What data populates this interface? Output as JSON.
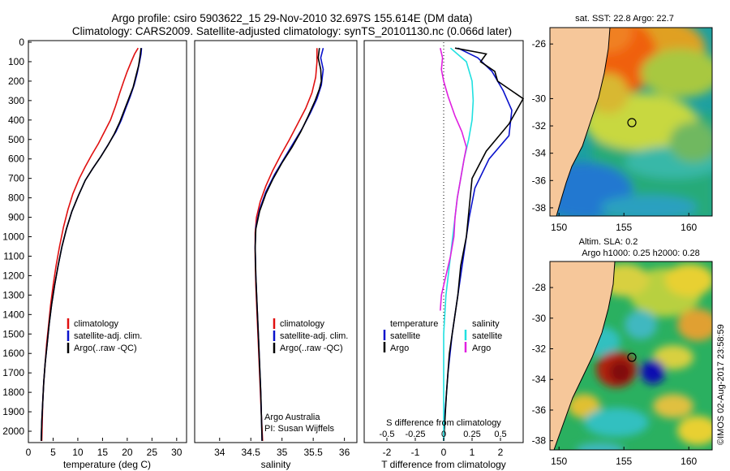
{
  "header": {
    "line1": "Argo profile: csiro 5903622_15 29-Nov-2010 32.697S 155.614E (DM data)",
    "line2": "Climatology: CARS2009. Satellite-adjusted climatology: synTS_20101130.nc (0.066d later)"
  },
  "colors": {
    "climatology": "#e01010",
    "satellite": "#0a12cc",
    "argo": "#000000",
    "s_satellite": "#20e0e0",
    "s_argo": "#e020e0",
    "land": "#f6c79a"
  },
  "depth_axis": {
    "ticks": [
      "0",
      "100",
      "200",
      "300",
      "400",
      "500",
      "600",
      "700",
      "800",
      "900",
      "1000",
      "1100",
      "1200",
      "1300",
      "1400",
      "1500",
      "1600",
      "1700",
      "1800",
      "1900",
      "2000"
    ]
  },
  "chart_data": [
    {
      "type": "line",
      "name": "temperature",
      "xlabel": "temperature (deg C)",
      "ylabel": "depth",
      "xlim": [
        0,
        32
      ],
      "ylim": [
        2050,
        0
      ],
      "xticks": [
        "0",
        "5",
        "10",
        "15",
        "20",
        "25",
        "30"
      ],
      "legend": [
        "climatology",
        "satellite-adj. clim.",
        "Argo(..raw -QC)"
      ],
      "series": [
        {
          "name": "climatology",
          "color": "#e01010",
          "points": [
            [
              22.2,
              30
            ],
            [
              21.5,
              60
            ],
            [
              20.8,
              100
            ],
            [
              20.0,
              150
            ],
            [
              19.3,
              200
            ],
            [
              18.5,
              260
            ],
            [
              17.6,
              330
            ],
            [
              16.6,
              400
            ],
            [
              15.4,
              460
            ],
            [
              14.2,
              520
            ],
            [
              12.8,
              580
            ],
            [
              11.5,
              640
            ],
            [
              10.3,
              700
            ],
            [
              9.0,
              780
            ],
            [
              8.0,
              860
            ],
            [
              7.1,
              950
            ],
            [
              6.3,
              1050
            ],
            [
              5.6,
              1150
            ],
            [
              5.0,
              1250
            ],
            [
              4.5,
              1350
            ],
            [
              4.1,
              1450
            ],
            [
              3.7,
              1550
            ],
            [
              3.4,
              1650
            ],
            [
              3.1,
              1750
            ],
            [
              2.9,
              1850
            ],
            [
              2.8,
              1950
            ],
            [
              2.7,
              2050
            ]
          ]
        },
        {
          "name": "satellite-adj. clim.",
          "color": "#0a12cc",
          "points": [
            [
              22.9,
              30
            ],
            [
              22.8,
              60
            ],
            [
              22.5,
              100
            ],
            [
              22.0,
              160
            ],
            [
              21.4,
              220
            ],
            [
              20.6,
              280
            ],
            [
              19.7,
              340
            ],
            [
              18.8,
              400
            ],
            [
              17.7,
              460
            ],
            [
              16.3,
              520
            ],
            [
              14.6,
              590
            ],
            [
              13.0,
              650
            ],
            [
              11.5,
              710
            ],
            [
              10.1,
              790
            ],
            [
              8.8,
              870
            ],
            [
              7.7,
              960
            ],
            [
              6.8,
              1050
            ],
            [
              6.0,
              1150
            ],
            [
              5.3,
              1250
            ],
            [
              4.7,
              1350
            ],
            [
              4.2,
              1450
            ],
            [
              3.8,
              1550
            ],
            [
              3.4,
              1650
            ],
            [
              3.1,
              1750
            ],
            [
              2.9,
              1850
            ],
            [
              2.7,
              1950
            ],
            [
              2.6,
              2050
            ]
          ]
        },
        {
          "name": "Argo(..raw -QC)",
          "color": "#000000",
          "points": [
            [
              22.8,
              30
            ],
            [
              22.6,
              70
            ],
            [
              22.3,
              120
            ],
            [
              21.8,
              170
            ],
            [
              21.2,
              230
            ],
            [
              20.3,
              290
            ],
            [
              19.4,
              350
            ],
            [
              18.5,
              410
            ],
            [
              17.4,
              470
            ],
            [
              16.1,
              530
            ],
            [
              14.6,
              590
            ],
            [
              13.0,
              650
            ],
            [
              11.5,
              710
            ],
            [
              10.1,
              790
            ],
            [
              8.8,
              870
            ],
            [
              7.7,
              960
            ],
            [
              6.8,
              1050
            ],
            [
              6.0,
              1150
            ],
            [
              5.3,
              1250
            ],
            [
              4.7,
              1350
            ],
            [
              4.2,
              1450
            ],
            [
              3.8,
              1550
            ],
            [
              3.4,
              1650
            ],
            [
              3.1,
              1750
            ],
            [
              2.9,
              1850
            ],
            [
              2.7,
              1950
            ],
            [
              2.6,
              2050
            ]
          ]
        }
      ]
    },
    {
      "type": "line",
      "name": "salinity",
      "xlabel": "salinity",
      "ylabel": "depth",
      "xlim": [
        33.6,
        36.2
      ],
      "ylim": [
        2050,
        0
      ],
      "xticks": [
        "34",
        "34.5",
        "35",
        "35.5",
        "36"
      ],
      "legend": [
        "climatology",
        "satellite-adj. clim.",
        "Argo(..raw -QC)"
      ],
      "annotation": [
        "Argo Australia",
        "PI: Susan Wijffels"
      ],
      "series": [
        {
          "name": "climatology",
          "color": "#e01010",
          "points": [
            [
              35.56,
              30
            ],
            [
              35.56,
              100
            ],
            [
              35.54,
              180
            ],
            [
              35.48,
              260
            ],
            [
              35.38,
              340
            ],
            [
              35.25,
              420
            ],
            [
              35.12,
              500
            ],
            [
              34.98,
              580
            ],
            [
              34.85,
              660
            ],
            [
              34.74,
              740
            ],
            [
              34.65,
              820
            ],
            [
              34.59,
              900
            ],
            [
              34.57,
              980
            ],
            [
              34.57,
              1100
            ],
            [
              34.58,
              1250
            ],
            [
              34.6,
              1400
            ],
            [
              34.62,
              1550
            ],
            [
              34.64,
              1700
            ],
            [
              34.66,
              1850
            ],
            [
              34.69,
              2050
            ]
          ]
        },
        {
          "name": "satellite-adj. clim.",
          "color": "#0a12cc",
          "points": [
            [
              35.66,
              30
            ],
            [
              35.62,
              80
            ],
            [
              35.66,
              140
            ],
            [
              35.63,
              220
            ],
            [
              35.56,
              290
            ],
            [
              35.46,
              360
            ],
            [
              35.33,
              440
            ],
            [
              35.18,
              520
            ],
            [
              35.03,
              600
            ],
            [
              34.88,
              680
            ],
            [
              34.74,
              770
            ],
            [
              34.64,
              860
            ],
            [
              34.58,
              950
            ],
            [
              34.57,
              1050
            ],
            [
              34.58,
              1200
            ],
            [
              34.6,
              1350
            ],
            [
              34.62,
              1500
            ],
            [
              34.64,
              1650
            ],
            [
              34.66,
              1800
            ],
            [
              34.68,
              2050
            ]
          ]
        },
        {
          "name": "Argo(..raw -QC)",
          "color": "#000000",
          "points": [
            [
              35.6,
              30
            ],
            [
              35.58,
              80
            ],
            [
              35.62,
              140
            ],
            [
              35.63,
              200
            ],
            [
              35.6,
              240
            ],
            [
              35.53,
              300
            ],
            [
              35.42,
              380
            ],
            [
              35.3,
              460
            ],
            [
              35.16,
              540
            ],
            [
              35.0,
              620
            ],
            [
              34.86,
              700
            ],
            [
              34.74,
              780
            ],
            [
              34.64,
              870
            ],
            [
              34.58,
              960
            ],
            [
              34.57,
              1060
            ],
            [
              34.58,
              1200
            ],
            [
              34.6,
              1350
            ],
            [
              34.62,
              1500
            ],
            [
              34.64,
              1650
            ],
            [
              34.66,
              1800
            ],
            [
              34.68,
              2050
            ]
          ]
        }
      ]
    },
    {
      "type": "line",
      "name": "difference from climatology",
      "xlabel": "T difference from climatology",
      "xlabel_top": "S difference from climatology",
      "xlim": [
        -2.8,
        2.8
      ],
      "ylim": [
        2050,
        0
      ],
      "xticks": [
        "-2",
        "-1",
        "0",
        "1",
        "2"
      ],
      "xticks_s": [
        "-0.5",
        "-0.25",
        "0",
        "0.25",
        "0.5"
      ],
      "legend": {
        "temperature_title": "temperature",
        "salinity_title": "salinity",
        "items": [
          "satellite",
          "Argo",
          "satellite",
          "Argo"
        ]
      },
      "series": [
        {
          "name": "temperature satellite",
          "color": "#0a12cc",
          "points": [
            [
              0.5,
              30
            ],
            [
              1.2,
              80
            ],
            [
              1.7,
              150
            ],
            [
              2.1,
              250
            ],
            [
              2.4,
              350
            ],
            [
              2.3,
              480
            ],
            [
              1.6,
              600
            ],
            [
              1.1,
              750
            ],
            [
              0.9,
              900
            ],
            [
              0.7,
              1100
            ],
            [
              0.5,
              1300
            ],
            [
              0.3,
              1500
            ],
            [
              0.15,
              1700
            ],
            [
              0.05,
              1900
            ],
            [
              0.0,
              2050
            ]
          ]
        },
        {
          "name": "temperature Argo",
          "color": "#000000",
          "points": [
            [
              0.4,
              30
            ],
            [
              1.5,
              60
            ],
            [
              1.3,
              100
            ],
            [
              1.8,
              150
            ],
            [
              1.9,
              200
            ],
            [
              2.8,
              290
            ],
            [
              2.3,
              420
            ],
            [
              1.5,
              560
            ],
            [
              1.0,
              700
            ],
            [
              0.9,
              850
            ],
            [
              0.8,
              1000
            ],
            [
              0.6,
              1150
            ],
            [
              0.5,
              1300
            ],
            [
              0.4,
              1400
            ],
            [
              0.3,
              1500
            ],
            [
              0.2,
              1600
            ],
            [
              0.1,
              1800
            ],
            [
              0.0,
              2050
            ]
          ]
        },
        {
          "name": "salinity satellite",
          "color": "#20e0e0",
          "points": [
            [
              0.06,
              30
            ],
            [
              0.2,
              100
            ],
            [
              0.25,
              200
            ],
            [
              0.26,
              300
            ],
            [
              0.25,
              400
            ],
            [
              0.22,
              500
            ],
            [
              0.18,
              600
            ],
            [
              0.15,
              700
            ],
            [
              0.12,
              800
            ],
            [
              0.1,
              900
            ],
            [
              0.08,
              1000
            ],
            [
              0.06,
              1100
            ],
            [
              0.04,
              1200
            ],
            [
              0.02,
              1300
            ],
            [
              0.01,
              1400
            ],
            [
              0.0,
              1500
            ],
            [
              0.0,
              2050
            ]
          ]
        },
        {
          "name": "salinity Argo",
          "color": "#e020e0",
          "points": [
            [
              -0.03,
              30
            ],
            [
              -0.01,
              80
            ],
            [
              -0.02,
              140
            ],
            [
              0.0,
              200
            ],
            [
              0.04,
              280
            ],
            [
              0.1,
              380
            ],
            [
              0.16,
              460
            ],
            [
              0.2,
              540
            ],
            [
              0.18,
              600
            ],
            [
              0.15,
              700
            ],
            [
              0.12,
              800
            ],
            [
              0.1,
              900
            ],
            [
              0.09,
              1000
            ],
            [
              0.06,
              1100
            ],
            [
              0.02,
              1200
            ],
            [
              -0.02,
              1300
            ],
            [
              -0.03,
              1380
            ]
          ]
        }
      ]
    }
  ],
  "maps": {
    "sst": {
      "title": "sat. SST: 22.8 Argo: 22.7",
      "yticks": [
        "-26",
        "-30",
        "-32",
        "-34",
        "-36",
        "-38"
      ],
      "xticks": [
        "150",
        "155",
        "160"
      ]
    },
    "sla": {
      "title1": "Altim. SLA: 0.2",
      "title2": "Argo h1000: 0.25 h2000: 0.28",
      "yticks": [
        "-28",
        "-30",
        "-32",
        "-34",
        "-36",
        "-38"
      ],
      "xticks": [
        "150",
        "155",
        "160"
      ]
    }
  },
  "footer": {
    "credit": "©IMOS 02-Aug-2017 23:58:59"
  }
}
